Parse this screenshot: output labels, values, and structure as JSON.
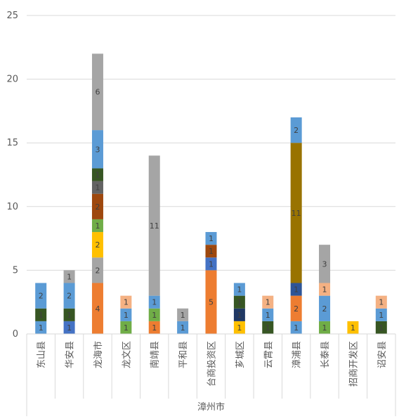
{
  "chart_data": {
    "type": "bar",
    "stacked": true,
    "title": "",
    "xlabel": "",
    "ylabel": "",
    "ylim": [
      0,
      25
    ],
    "yticks": [
      0,
      5,
      10,
      15,
      20,
      25
    ],
    "grid": true,
    "legend": "none",
    "group_label": "漳州市",
    "categories": [
      "东山县",
      "华安县",
      "龙海市",
      "龙文区",
      "南靖县",
      "平和县",
      "台商投资区",
      "芗城区",
      "云霄县",
      "漳浦县",
      "长泰县",
      "招商开发区",
      "诏安县"
    ],
    "stacks": [
      [
        {
          "value": 1,
          "color": "#5b9bd5"
        },
        {
          "value": 1,
          "color": "#375623"
        },
        {
          "value": 2,
          "color": "#5b9bd5"
        }
      ],
      [
        {
          "value": 1,
          "color": "#4472c4"
        },
        {
          "value": 1,
          "color": "#375623"
        },
        {
          "value": 2,
          "color": "#5b9bd5"
        },
        {
          "value": 1,
          "color": "#a5a5a5"
        }
      ],
      [
        {
          "value": 4,
          "color": "#ed7d31"
        },
        {
          "value": 2,
          "color": "#a5a5a5"
        },
        {
          "value": 2,
          "color": "#ffc000"
        },
        {
          "value": 1,
          "color": "#70ad47"
        },
        {
          "value": 2,
          "color": "#9e480e"
        },
        {
          "value": 1,
          "color": "#636363"
        },
        {
          "value": 1,
          "color": "#375623"
        },
        {
          "value": 3,
          "color": "#5b9bd5"
        },
        {
          "value": 6,
          "color": "#a5a5a5"
        }
      ],
      [
        {
          "value": 1,
          "color": "#70ad47"
        },
        {
          "value": 1,
          "color": "#5b9bd5"
        },
        {
          "value": 1,
          "color": "#f4b183"
        }
      ],
      [
        {
          "value": 1,
          "color": "#ed7d31"
        },
        {
          "value": 1,
          "color": "#70ad47"
        },
        {
          "value": 1,
          "color": "#5b9bd5"
        },
        {
          "value": 11,
          "color": "#a5a5a5"
        }
      ],
      [
        {
          "value": 1,
          "color": "#5b9bd5"
        },
        {
          "value": 1,
          "color": "#a5a5a5"
        }
      ],
      [
        {
          "value": 5,
          "color": "#ed7d31"
        },
        {
          "value": 1,
          "color": "#4472c4"
        },
        {
          "value": 1,
          "color": "#9e480e"
        },
        {
          "value": 1,
          "color": "#5b9bd5"
        }
      ],
      [
        {
          "value": 1,
          "color": "#ffc000"
        },
        {
          "value": 1,
          "color": "#203864"
        },
        {
          "value": 1,
          "color": "#375623"
        },
        {
          "value": 1,
          "color": "#5b9bd5"
        }
      ],
      [
        {
          "value": 1,
          "color": "#375623"
        },
        {
          "value": 1,
          "color": "#5b9bd5"
        },
        {
          "value": 1,
          "color": "#f4b183"
        }
      ],
      [
        {
          "value": 1,
          "color": "#5b9bd5"
        },
        {
          "value": 2,
          "color": "#ed7d31"
        },
        {
          "value": 1,
          "color": "#2e5597"
        },
        {
          "value": 11,
          "color": "#997300"
        },
        {
          "value": 2,
          "color": "#5b9bd5"
        }
      ],
      [
        {
          "value": 1,
          "color": "#70ad47"
        },
        {
          "value": 2,
          "color": "#5b9bd5"
        },
        {
          "value": 1,
          "color": "#f4b183"
        },
        {
          "value": 3,
          "color": "#a5a5a5"
        }
      ],
      [
        {
          "value": 1,
          "color": "#ffc000"
        }
      ],
      [
        {
          "value": 1,
          "color": "#375623"
        },
        {
          "value": 1,
          "color": "#5b9bd5"
        },
        {
          "value": 1,
          "color": "#f4b183"
        }
      ]
    ]
  }
}
